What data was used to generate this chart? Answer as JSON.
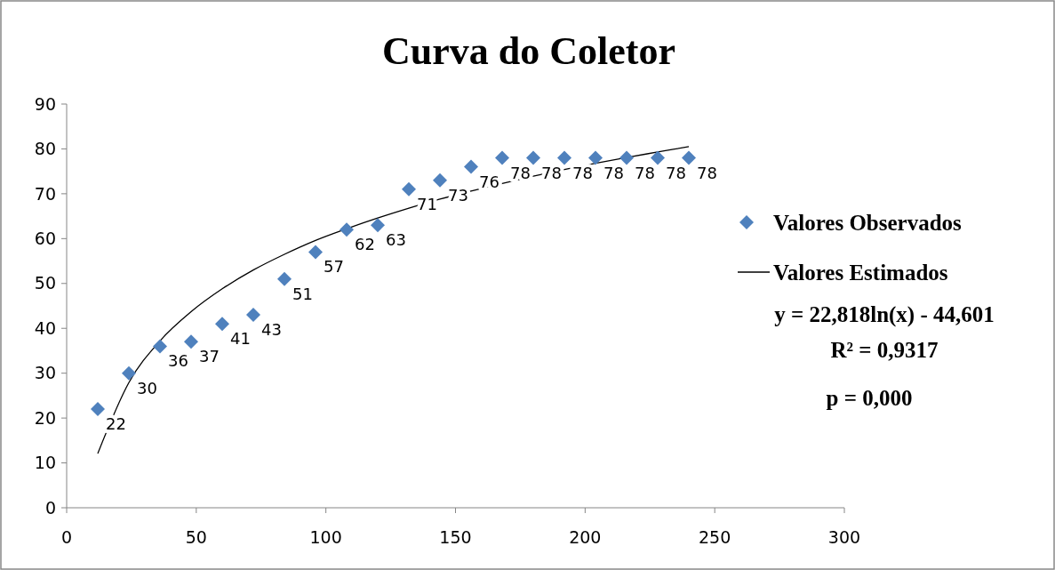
{
  "chart_data": {
    "type": "scatter",
    "title": "Curva do Coletor",
    "x": [
      12,
      24,
      36,
      48,
      60,
      72,
      84,
      96,
      108,
      120,
      132,
      144,
      156,
      168,
      180,
      192,
      204,
      216,
      228,
      240
    ],
    "series": [
      {
        "name": "Valores Observados",
        "color": "#4f81bd",
        "values": [
          22,
          30,
          36,
          37,
          41,
          43,
          51,
          57,
          62,
          63,
          71,
          73,
          76,
          78,
          78,
          78,
          78,
          78,
          78,
          78
        ],
        "value_labels": [
          "22",
          "30",
          "36",
          "37",
          "41",
          "43",
          "51",
          "57",
          "62",
          "63",
          "71",
          "73",
          "76",
          "78",
          "78",
          "78",
          "78",
          "78",
          "78",
          "78"
        ]
      },
      {
        "name": "Valores Estimados",
        "type": "line",
        "color": "#000000",
        "marker": "none",
        "line_style": "solid",
        "values": [
          12.1,
          27.9,
          37.2,
          43.7,
          48.8,
          53.0,
          56.5,
          59.6,
          62.2,
          64.6,
          66.8,
          68.8,
          70.6,
          72.3,
          73.9,
          75.4,
          76.8,
          78.1,
          79.3,
          80.5
        ]
      }
    ],
    "xlim": [
      0,
      300
    ],
    "xticks": [
      0,
      50,
      100,
      150,
      200,
      250,
      300
    ],
    "ylim": [
      0,
      90
    ],
    "yticks": [
      0,
      10,
      20,
      30,
      40,
      50,
      60,
      70,
      80,
      90
    ],
    "grid": false,
    "marker": "diamond",
    "legend": "right",
    "annotations": [
      "y = 22,818ln(x) - 44,601",
      "R² = 0,9317",
      "p = 0,000"
    ]
  }
}
